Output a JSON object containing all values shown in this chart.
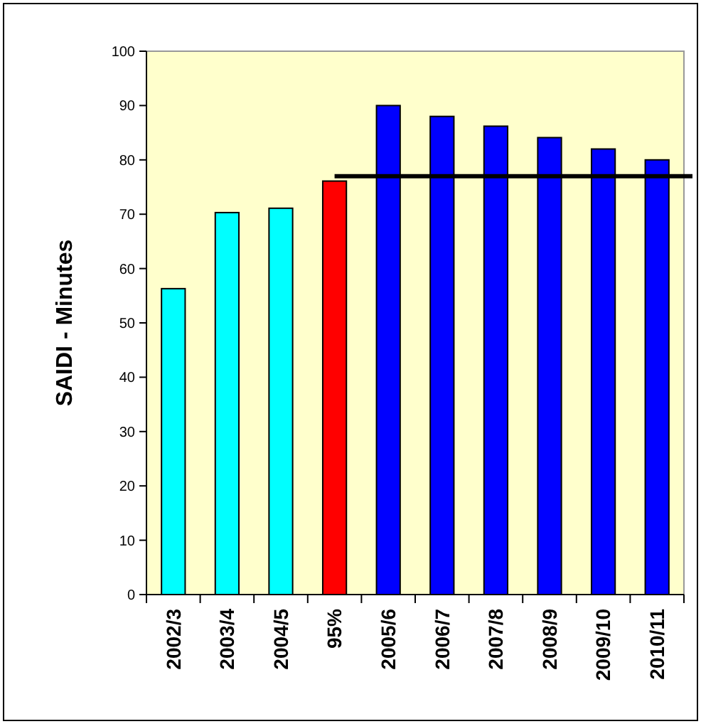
{
  "chart_data": {
    "type": "bar",
    "ylabel": "SAIDI - Minutes",
    "categories": [
      "2002/3",
      "2003/4",
      "2004/5",
      "95%",
      "2005/6",
      "2006/7",
      "2007/8",
      "2008/9",
      "2009/10",
      "2010/11"
    ],
    "values": [
      56.3,
      70.3,
      71.1,
      76.1,
      90,
      88,
      86.2,
      84.1,
      82,
      80
    ],
    "colors": [
      "#00ffff",
      "#00ffff",
      "#00ffff",
      "#ff0000",
      "#0000ff",
      "#0000ff",
      "#0000ff",
      "#0000ff",
      "#0000ff",
      "#0000ff"
    ],
    "ylim": [
      0,
      100
    ],
    "yticks": [
      0,
      10,
      20,
      30,
      40,
      50,
      60,
      70,
      80,
      90,
      100
    ],
    "ref_lines": [
      {
        "axis": "y",
        "value": 77,
        "color": "#000000"
      }
    ],
    "grid": false
  }
}
